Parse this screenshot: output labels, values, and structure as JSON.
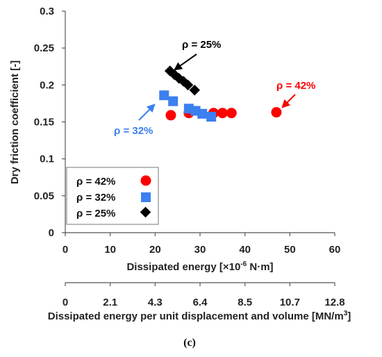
{
  "chart_data": {
    "type": "scatter",
    "xlabel": "Dissipated energy [×10",
    "xlabel_sup": "-6",
    "xlabel_tail": " N·m]",
    "ylabel": "Dry friction coefficient [-]",
    "xlim": [
      0,
      60
    ],
    "ylim": [
      0,
      0.3
    ],
    "x_ticks": [
      "0",
      "10",
      "20",
      "30",
      "40",
      "50",
      "60"
    ],
    "y_ticks": [
      "0",
      "0.05",
      "0.1",
      "0.15",
      "0.2",
      "0.25",
      "0.3"
    ],
    "secondary_axis": {
      "label": "Dissipated energy per unit displacement and volume [MN/m",
      "label_sup": "3",
      "label_tail": "]",
      "ticks": [
        "0",
        "2.1",
        "4.3",
        "6.4",
        "8.5",
        "10.7",
        "12.8"
      ]
    },
    "series": [
      {
        "name": "ρ = 42%",
        "color": "#ff0000",
        "marker": "circle",
        "points": [
          [
            23.5,
            0.159
          ],
          [
            27.5,
            0.162
          ],
          [
            33,
            0.162
          ],
          [
            35,
            0.162
          ],
          [
            37,
            0.162
          ],
          [
            47,
            0.163
          ]
        ]
      },
      {
        "name": "ρ = 32%",
        "color": "#3b7ff0",
        "marker": "square",
        "points": [
          [
            22,
            0.186
          ],
          [
            24,
            0.178
          ],
          [
            27.5,
            0.168
          ],
          [
            29,
            0.165
          ],
          [
            30.5,
            0.161
          ],
          [
            32.5,
            0.157
          ]
        ]
      },
      {
        "name": "ρ = 25%",
        "color": "#000000",
        "marker": "diamond",
        "points": [
          [
            23.3,
            0.219
          ],
          [
            24.3,
            0.214
          ],
          [
            25.3,
            0.209
          ],
          [
            26.3,
            0.205
          ],
          [
            27.3,
            0.2
          ],
          [
            28.8,
            0.193
          ]
        ]
      }
    ],
    "annotations": [
      {
        "text": "ρ = 25%",
        "color": "#000000"
      },
      {
        "text": "ρ = 42%",
        "color": "#ff0000"
      },
      {
        "text": "ρ = 32%",
        "color": "#3b7ff0"
      }
    ],
    "legend": {
      "placement": "bottom-left",
      "entries": [
        "ρ = 42%",
        "ρ = 32%",
        "ρ = 25%"
      ]
    },
    "grid": false
  },
  "panel_label": "(c)"
}
